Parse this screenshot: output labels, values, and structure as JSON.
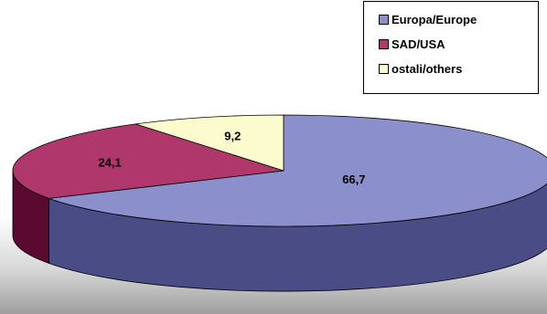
{
  "chart_data": {
    "type": "pie",
    "title": "",
    "legend_position": "top-right",
    "slices": [
      {
        "label": "Europa/Europe",
        "value": 66.7,
        "value_label": "66,7",
        "color": "#8b8fcc",
        "side_color": "#4a4c86"
      },
      {
        "label": "SAD/USA",
        "value": 24.1,
        "value_label": "24,1",
        "color": "#b0376b",
        "side_color": "#5a0a31"
      },
      {
        "label": "ostali/others",
        "value": 9.2,
        "value_label": "9,2",
        "color": "#fbfbcd",
        "side_color": "#b5b58c"
      }
    ]
  }
}
